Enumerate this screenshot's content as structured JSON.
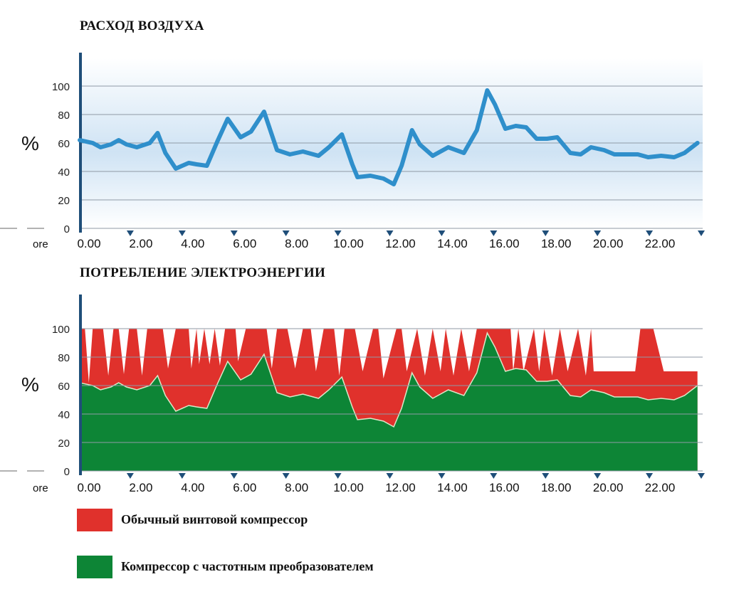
{
  "colors": {
    "air_line": "#2f8fcb",
    "axis": "#1f4e79",
    "grid": "#8f9aa6",
    "standard": "#e0312c",
    "vsd": "#0d8536",
    "band_top": "#ffffff",
    "band_mid": "#cfe3f4"
  },
  "chart_data": [
    {
      "type": "line",
      "title": "РАСХОД ВОЗДУХА",
      "ylabel": "%",
      "xlabel": "ore",
      "ylim": [
        0,
        120
      ],
      "yticks": [
        "0",
        "20",
        "40",
        "60",
        "80",
        "100"
      ],
      "xticks": [
        "0.00",
        "2.00",
        "4.00",
        "6.00",
        "8.00",
        "10.00",
        "12.00",
        "14.00",
        "16.00",
        "18.00",
        "20.00",
        "22.00"
      ],
      "x": [
        0,
        0.5,
        0.8,
        1.2,
        1.5,
        1.8,
        2.2,
        2.7,
        3.0,
        3.3,
        3.7,
        4.2,
        4.5,
        4.9,
        5.3,
        5.7,
        6.2,
        6.6,
        7.1,
        7.6,
        8.1,
        8.6,
        9.2,
        9.6,
        10.1,
        10.5,
        10.7,
        11.2,
        11.7,
        12.1,
        12.4,
        12.8,
        13.1,
        13.6,
        14.2,
        14.8,
        15.3,
        15.7,
        16.0,
        16.4,
        16.8,
        17.2,
        17.6,
        18.0,
        18.4,
        18.9,
        19.3,
        19.7,
        20.2,
        20.6,
        21.0,
        21.5,
        21.9,
        22.4,
        22.9,
        23.3,
        23.8
      ],
      "series": [
        {
          "values": [
            62,
            60,
            57,
            59,
            62,
            59,
            57,
            60,
            67,
            53,
            42,
            46,
            45,
            44,
            61,
            77,
            64,
            68,
            82,
            55,
            52,
            54,
            51,
            57,
            66,
            45,
            36,
            37,
            35,
            31,
            44,
            69,
            59,
            51,
            57,
            53,
            69,
            97,
            87,
            70,
            72,
            71,
            63,
            63,
            64,
            53,
            52,
            57,
            55,
            52,
            52,
            52,
            50,
            51,
            50,
            53,
            60
          ]
        }
      ]
    },
    {
      "type": "area",
      "title": "ПОТРЕБЛЕНИЕ ЭЛЕКТРОЭНЕРГИИ",
      "ylabel": "%",
      "xlabel": "ore",
      "ylim": [
        0,
        120
      ],
      "yticks": [
        "0",
        "20",
        "40",
        "60",
        "80",
        "100"
      ],
      "xticks": [
        "0.00",
        "2.00",
        "4.00",
        "6.00",
        "8.00",
        "10.00",
        "12.00",
        "14.00",
        "16.00",
        "18.00",
        "20.00",
        "22.00"
      ],
      "x": [
        0,
        0.5,
        0.8,
        1.2,
        1.5,
        1.8,
        2.2,
        2.7,
        3.0,
        3.3,
        3.7,
        4.2,
        4.5,
        4.9,
        5.3,
        5.7,
        6.2,
        6.6,
        7.1,
        7.6,
        8.1,
        8.6,
        9.2,
        9.6,
        10.1,
        10.5,
        10.7,
        11.2,
        11.7,
        12.1,
        12.4,
        12.8,
        13.1,
        13.6,
        14.2,
        14.8,
        15.3,
        15.7,
        16.0,
        16.4,
        16.8,
        17.2,
        17.6,
        18.0,
        18.4,
        18.9,
        19.3,
        19.7,
        20.2,
        20.6,
        21.0,
        21.5,
        21.9,
        22.4,
        22.9,
        23.3,
        23.8
      ],
      "series": [
        {
          "name": "Компрессор с частотным преобразователем",
          "values": [
            62,
            60,
            57,
            59,
            62,
            59,
            57,
            60,
            67,
            53,
            42,
            46,
            45,
            44,
            61,
            77,
            64,
            68,
            82,
            55,
            52,
            54,
            51,
            57,
            66,
            45,
            36,
            37,
            35,
            31,
            44,
            69,
            59,
            51,
            57,
            53,
            69,
            97,
            87,
            70,
            72,
            71,
            63,
            63,
            64,
            53,
            52,
            57,
            55,
            52,
            52,
            52,
            50,
            51,
            50,
            53,
            60
          ]
        },
        {
          "name": "Обычный винтовой компрессор",
          "x": [
            0,
            0.2,
            0.35,
            0.5,
            0.9,
            1.1,
            1.3,
            1.5,
            1.7,
            1.9,
            2.2,
            2.4,
            2.6,
            2.8,
            3.2,
            3.4,
            3.7,
            3.9,
            4.2,
            4.3,
            4.5,
            4.6,
            4.8,
            5.0,
            5.2,
            5.4,
            5.6,
            6.0,
            6.1,
            6.4,
            6.6,
            7.2,
            7.4,
            7.6,
            8.0,
            8.3,
            8.6,
            8.9,
            9.1,
            9.4,
            9.8,
            10.0,
            10.2,
            10.6,
            10.9,
            11.3,
            11.5,
            11.7,
            12.2,
            12.4,
            12.6,
            13.0,
            13.3,
            13.6,
            13.9,
            14.1,
            14.4,
            14.7,
            15.0,
            15.3,
            16.0,
            16.6,
            16.7,
            16.9,
            17.1,
            17.5,
            17.7,
            17.9,
            18.2,
            18.5,
            18.8,
            19.2,
            19.5,
            19.7,
            19.8,
            20.3,
            20.6,
            21.4,
            21.6,
            22.1,
            22.5,
            23.0,
            23.4,
            23.8
          ],
          "values": [
            100,
            100,
            62,
            100,
            100,
            67,
            100,
            100,
            68,
            100,
            100,
            67,
            100,
            100,
            100,
            72,
            100,
            100,
            100,
            72,
            100,
            75,
            100,
            75,
            100,
            74,
            100,
            100,
            77,
            100,
            100,
            100,
            72,
            100,
            100,
            72,
            100,
            100,
            70,
            100,
            100,
            67,
            100,
            100,
            70,
            100,
            100,
            65,
            100,
            100,
            70,
            100,
            67,
            100,
            70,
            100,
            67,
            100,
            70,
            100,
            100,
            100,
            70,
            100,
            70,
            100,
            70,
            100,
            67,
            100,
            70,
            100,
            67,
            100,
            70,
            70,
            70,
            70,
            100,
            100,
            70,
            70,
            70,
            70
          ]
        }
      ]
    }
  ],
  "legend": [
    {
      "label": "Обычный винтовой компрессор",
      "color": "#e0312c"
    },
    {
      "label": "Компрессор с частотным преобразователем",
      "color": "#0d8536"
    }
  ]
}
